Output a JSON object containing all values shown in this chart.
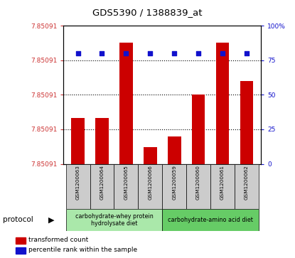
{
  "title": "GDS5390 / 1388839_at",
  "samples": [
    "GSM1200063",
    "GSM1200064",
    "GSM1200065",
    "GSM1200066",
    "GSM1200059",
    "GSM1200060",
    "GSM1200061",
    "GSM1200062"
  ],
  "bar_heights_relative": [
    0.33,
    0.33,
    0.88,
    0.12,
    0.2,
    0.5,
    0.88,
    0.6
  ],
  "percentile_relative": [
    0.8,
    0.8,
    0.8,
    0.8,
    0.8,
    0.8,
    0.8,
    0.8
  ],
  "y_min": 7.850905,
  "y_max": 7.850915,
  "bar_color": "#cc0000",
  "percentile_color": "#1111cc",
  "protocol_groups": [
    {
      "label": "carbohydrate-whey protein\nhydrolysate diet",
      "start": 0,
      "end": 4,
      "color": "#aae8aa"
    },
    {
      "label": "carbohydrate-amino acid diet",
      "start": 4,
      "end": 8,
      "color": "#66cc66"
    }
  ],
  "legend_items": [
    {
      "label": "transformed count",
      "color": "#cc0000"
    },
    {
      "label": "percentile rank within the sample",
      "color": "#1111cc"
    }
  ],
  "protocol_label": "protocol",
  "background_color": "#ffffff",
  "tick_label_color_left": "#cc3333",
  "tick_label_color_right": "#1111cc",
  "ytick_label": "7.85091",
  "ytick_right_labels": [
    "0",
    "25",
    "50",
    "75",
    "100%"
  ],
  "ytick_right_vals": [
    0,
    25,
    50,
    75,
    100
  ]
}
